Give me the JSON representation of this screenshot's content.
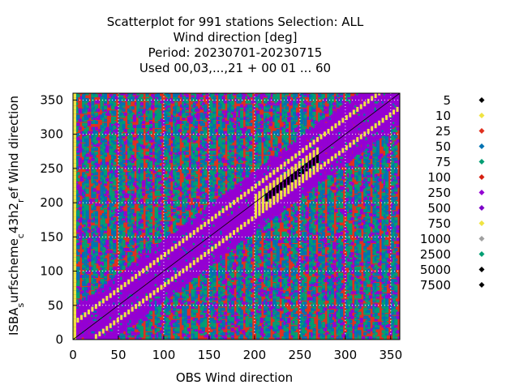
{
  "chart_data": {
    "type": "scatter",
    "title": [
      "Scatterplot for  991 stations Selection: ALL",
      "Wind direction [deg]",
      "Period: 20230701-20230715",
      "Used  00,03,...,21  + 00 01 ... 60"
    ],
    "xlabel": "OBS Wind direction",
    "ylabel": {
      "parts": [
        {
          "text": "ISBA",
          "sub": false
        },
        {
          "text": "s",
          "sub": true
        },
        {
          "text": "urfscheme",
          "sub": false
        },
        {
          "text": "c",
          "sub": true
        },
        {
          "text": "43h2",
          "sub": false
        },
        {
          "text": "r",
          "sub": true
        },
        {
          "text": "ef Wind direction",
          "sub": false
        }
      ]
    },
    "xlim": [
      0,
      360
    ],
    "ylim": [
      0,
      360
    ],
    "xticks": [
      0,
      50,
      100,
      150,
      200,
      250,
      300,
      350
    ],
    "yticks": [
      0,
      50,
      100,
      150,
      200,
      250,
      300,
      350
    ],
    "grid": true,
    "diagonal_line": true,
    "legend_placement": "right",
    "colors": {
      "5": "#000000",
      "10": "#f0e442",
      "25": "#e0301e",
      "50": "#0072b2",
      "75": "#009e73",
      "100": "#d62010",
      "250": "#9400d3",
      "500": "#7b00c8",
      "750": "#f0e442",
      "1000": "#a0a0a0",
      "2500": "#009e73",
      "5000": "#000000",
      "7500": "#000000"
    },
    "legend": [
      {
        "label": "5",
        "color": "#000000"
      },
      {
        "label": "10",
        "color": "#f0e442"
      },
      {
        "label": "25",
        "color": "#e0301e"
      },
      {
        "label": "50",
        "color": "#0072b2"
      },
      {
        "label": "75",
        "color": "#009e73"
      },
      {
        "label": "100",
        "color": "#d62010"
      },
      {
        "label": "250",
        "color": "#9400d3"
      },
      {
        "label": "500",
        "color": "#7b00c8"
      },
      {
        "label": "750",
        "color": "#f0e442"
      },
      {
        "label": "1000",
        "color": "#a0a0a0"
      },
      {
        "label": "2500",
        "color": "#009e73"
      },
      {
        "label": "5000",
        "color": "#000000"
      },
      {
        "label": "7500",
        "color": "#000000"
      }
    ],
    "density_bands": [
      {
        "count_class": "25",
        "region": "background",
        "x": [
          0,
          360
        ],
        "y": [
          0,
          360
        ]
      },
      {
        "count_class": "250",
        "region": "diagonal band",
        "offset": [
          -45,
          45
        ]
      },
      {
        "count_class": "2500",
        "region": "vertical stripes",
        "x_period": 10
      },
      {
        "count_class": "50",
        "region": "vertical stripes",
        "x_period": 10
      },
      {
        "count_class": "750",
        "region": "diagonal ridges",
        "offset": [
          -25,
          -15
        ]
      },
      {
        "count_class": "5000",
        "region": "core cluster",
        "x": [
          205,
          270
        ],
        "y": [
          200,
          275
        ]
      }
    ]
  }
}
